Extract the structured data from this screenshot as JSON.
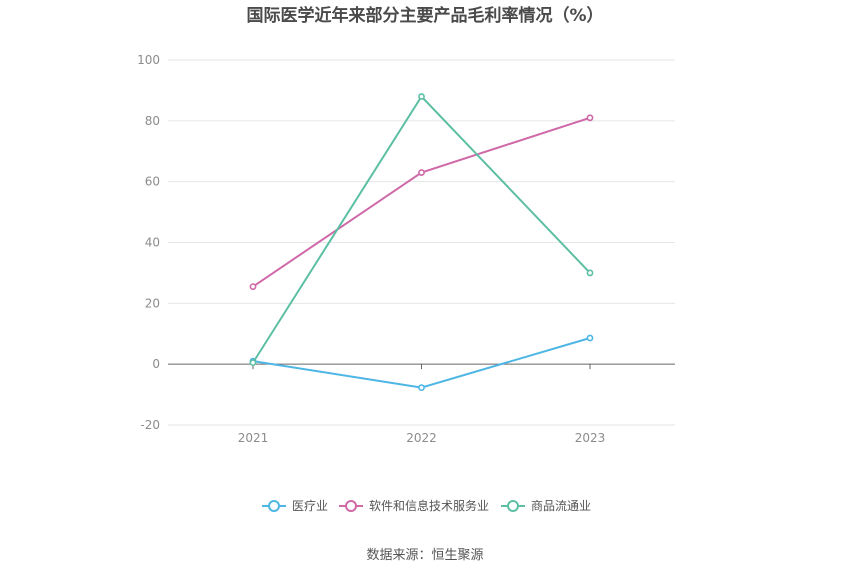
{
  "chart_data": {
    "type": "line",
    "title": "国际医学近年来部分主要产品毛利率情况（%）",
    "categories": [
      "2021",
      "2022",
      "2023"
    ],
    "series": [
      {
        "name": "医疗业",
        "color": "#4db6e5",
        "values": [
          1.0,
          -7.7,
          8.6
        ]
      },
      {
        "name": "软件和信息技术服务业",
        "color": "#cf69a8",
        "values": [
          25.5,
          63.0,
          81.0
        ]
      },
      {
        "name": "商品流通业",
        "color": "#5cbfa3",
        "values": [
          0.5,
          88.0,
          30.0
        ]
      }
    ],
    "ylim": [
      -20,
      100
    ],
    "yticks": [
      "100",
      "80",
      "60",
      "40",
      "20",
      "0",
      "-20"
    ],
    "grid": true,
    "legend_position": "bottom-center"
  },
  "source_label": "数据来源：恒生聚源"
}
